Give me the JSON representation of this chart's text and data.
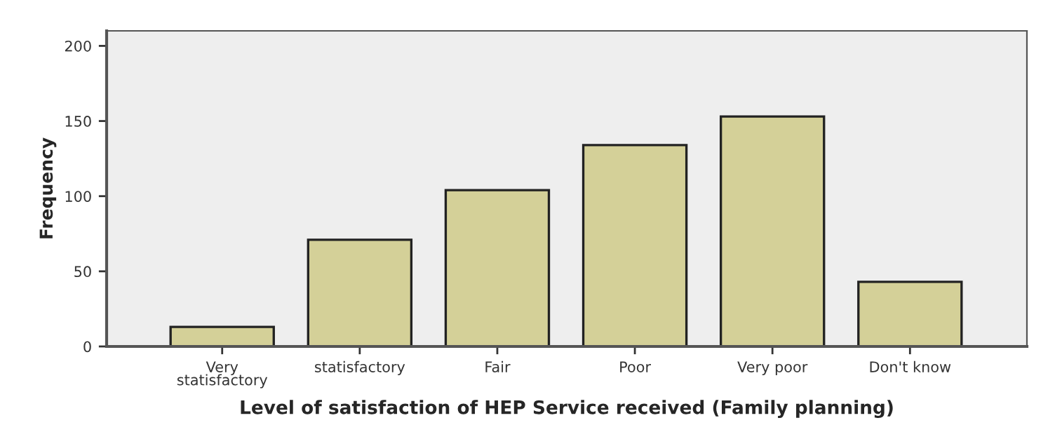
{
  "chart_data": {
    "type": "bar",
    "xlabel": "Level of satisfaction of HEP Service received (Family planning)",
    "ylabel": "Frequency",
    "categories": [
      "Very\nstatisfactory",
      "statisfactory",
      "Fair",
      "Poor",
      "Very poor",
      "Don't know"
    ],
    "values": [
      13,
      71,
      104,
      134,
      153,
      43
    ],
    "color": "#d4d098",
    "ylim": [
      0,
      210
    ],
    "yticks": [
      0,
      50,
      100,
      150,
      200
    ],
    "grid": false
  }
}
